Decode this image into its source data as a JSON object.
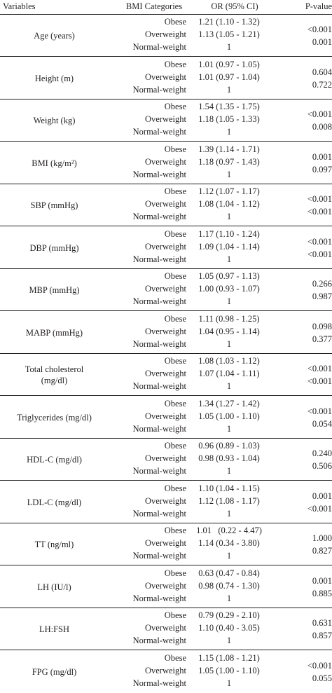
{
  "headers": {
    "variables": "Variables",
    "bmi": "BMI Categories",
    "or": "OR (95% CI)",
    "p": "P-value"
  },
  "categories": [
    "Obese",
    "Overweight",
    "Normal-weight"
  ],
  "rows": [
    {
      "variable": "Age (years)",
      "or": [
        "1.21 (1.10 - 1.32)",
        "1.13 (1.05 - 1.21)",
        "1"
      ],
      "p": [
        "<0.001",
        "0.001"
      ]
    },
    {
      "variable": "Height (m)",
      "or": [
        "1.01 (0.97 - 1.05)",
        "1.01 (0.97 - 1.04)",
        "1"
      ],
      "p": [
        "0.604",
        "0.722"
      ]
    },
    {
      "variable": "Weight (kg)",
      "or": [
        "1.54 (1.35 - 1.75)",
        "1.18 (1.05 - 1.33)",
        "1"
      ],
      "p": [
        "<0.001",
        "0.008"
      ]
    },
    {
      "variable": "BMI (kg/m²)",
      "or": [
        "1.39 (1.14 - 1.71)",
        "1.18 (0.97 - 1.43)",
        "1"
      ],
      "p": [
        "0.001",
        "0.097"
      ]
    },
    {
      "variable": "SBP (mmHg)",
      "or": [
        "1.12 (1.07 - 1.17)",
        "1.08 (1.04 - 1.12)",
        "1"
      ],
      "p": [
        "<0.001",
        "<0.001"
      ]
    },
    {
      "variable": "DBP (mmHg)",
      "or": [
        "1.17 (1.10 - 1.24)",
        "1.09 (1.04 - 1.14)",
        "1"
      ],
      "p": [
        "<0.001",
        "<0.001"
      ]
    },
    {
      "variable": "MBP (mmHg)",
      "or": [
        "1.05 (0.97 - 1.13)",
        "1.00 (0.93 - 1.07)",
        "1"
      ],
      "p": [
        "0.266",
        "0.987"
      ]
    },
    {
      "variable": "MABP (mmHg)",
      "or": [
        "1.11 (0.98 - 1.25)",
        "1.04 (0.95 - 1.14)",
        "1"
      ],
      "p": [
        "0.098",
        "0.377"
      ]
    },
    {
      "variable": "Total cholesterol\n(mg/dl)",
      "or": [
        "1.08 (1.03 - 1.12)",
        "1.07 (1.04 - 1.11)",
        "1"
      ],
      "p": [
        "<0.001",
        "<0.001"
      ]
    },
    {
      "variable": "Triglycerides (mg/dl)",
      "or": [
        "1.34 (1.27 - 1.42)",
        "1.05 (1.00 - 1.10)",
        "1"
      ],
      "p": [
        "<0.001",
        "0.054"
      ]
    },
    {
      "variable": "HDL-C (mg/dl)",
      "or": [
        "0.96 (0.89 - 1.03)",
        "0.98 (0.93 - 1.04)",
        "1"
      ],
      "p": [
        "0.240",
        "0.506"
      ]
    },
    {
      "variable": "LDL-C (mg/dl)",
      "or": [
        "1.10 (1.04 - 1.15)",
        "1.12 (1.08 - 1.17)",
        "1"
      ],
      "p": [
        "0.001",
        "<0.001"
      ]
    },
    {
      "variable": "TT (ng/ml)",
      "or": [
        "1.01   (0.22 - 4.47)",
        "1.14 (0.34 - 3.80)",
        "1"
      ],
      "p": [
        "1.000",
        "0.827"
      ]
    },
    {
      "variable": "LH (IU/l)",
      "or": [
        "0.63 (0.47 - 0.84)",
        "0.98 (0.74 - 1.30)",
        "1"
      ],
      "p": [
        "0.001",
        "0.885"
      ]
    },
    {
      "variable": "LH:FSH",
      "or": [
        "0.79 (0.29 - 2.10)",
        "1.10 (0.40 - 3.05)",
        "1"
      ],
      "p": [
        "0.631",
        "0.857"
      ]
    },
    {
      "variable": "FPG (mg/dl)",
      "or": [
        "1.15 (1.08 - 1.21)",
        "1.05 (1.00 - 1.10)",
        "1"
      ],
      "p": [
        "<0.001",
        "0.055"
      ]
    }
  ]
}
